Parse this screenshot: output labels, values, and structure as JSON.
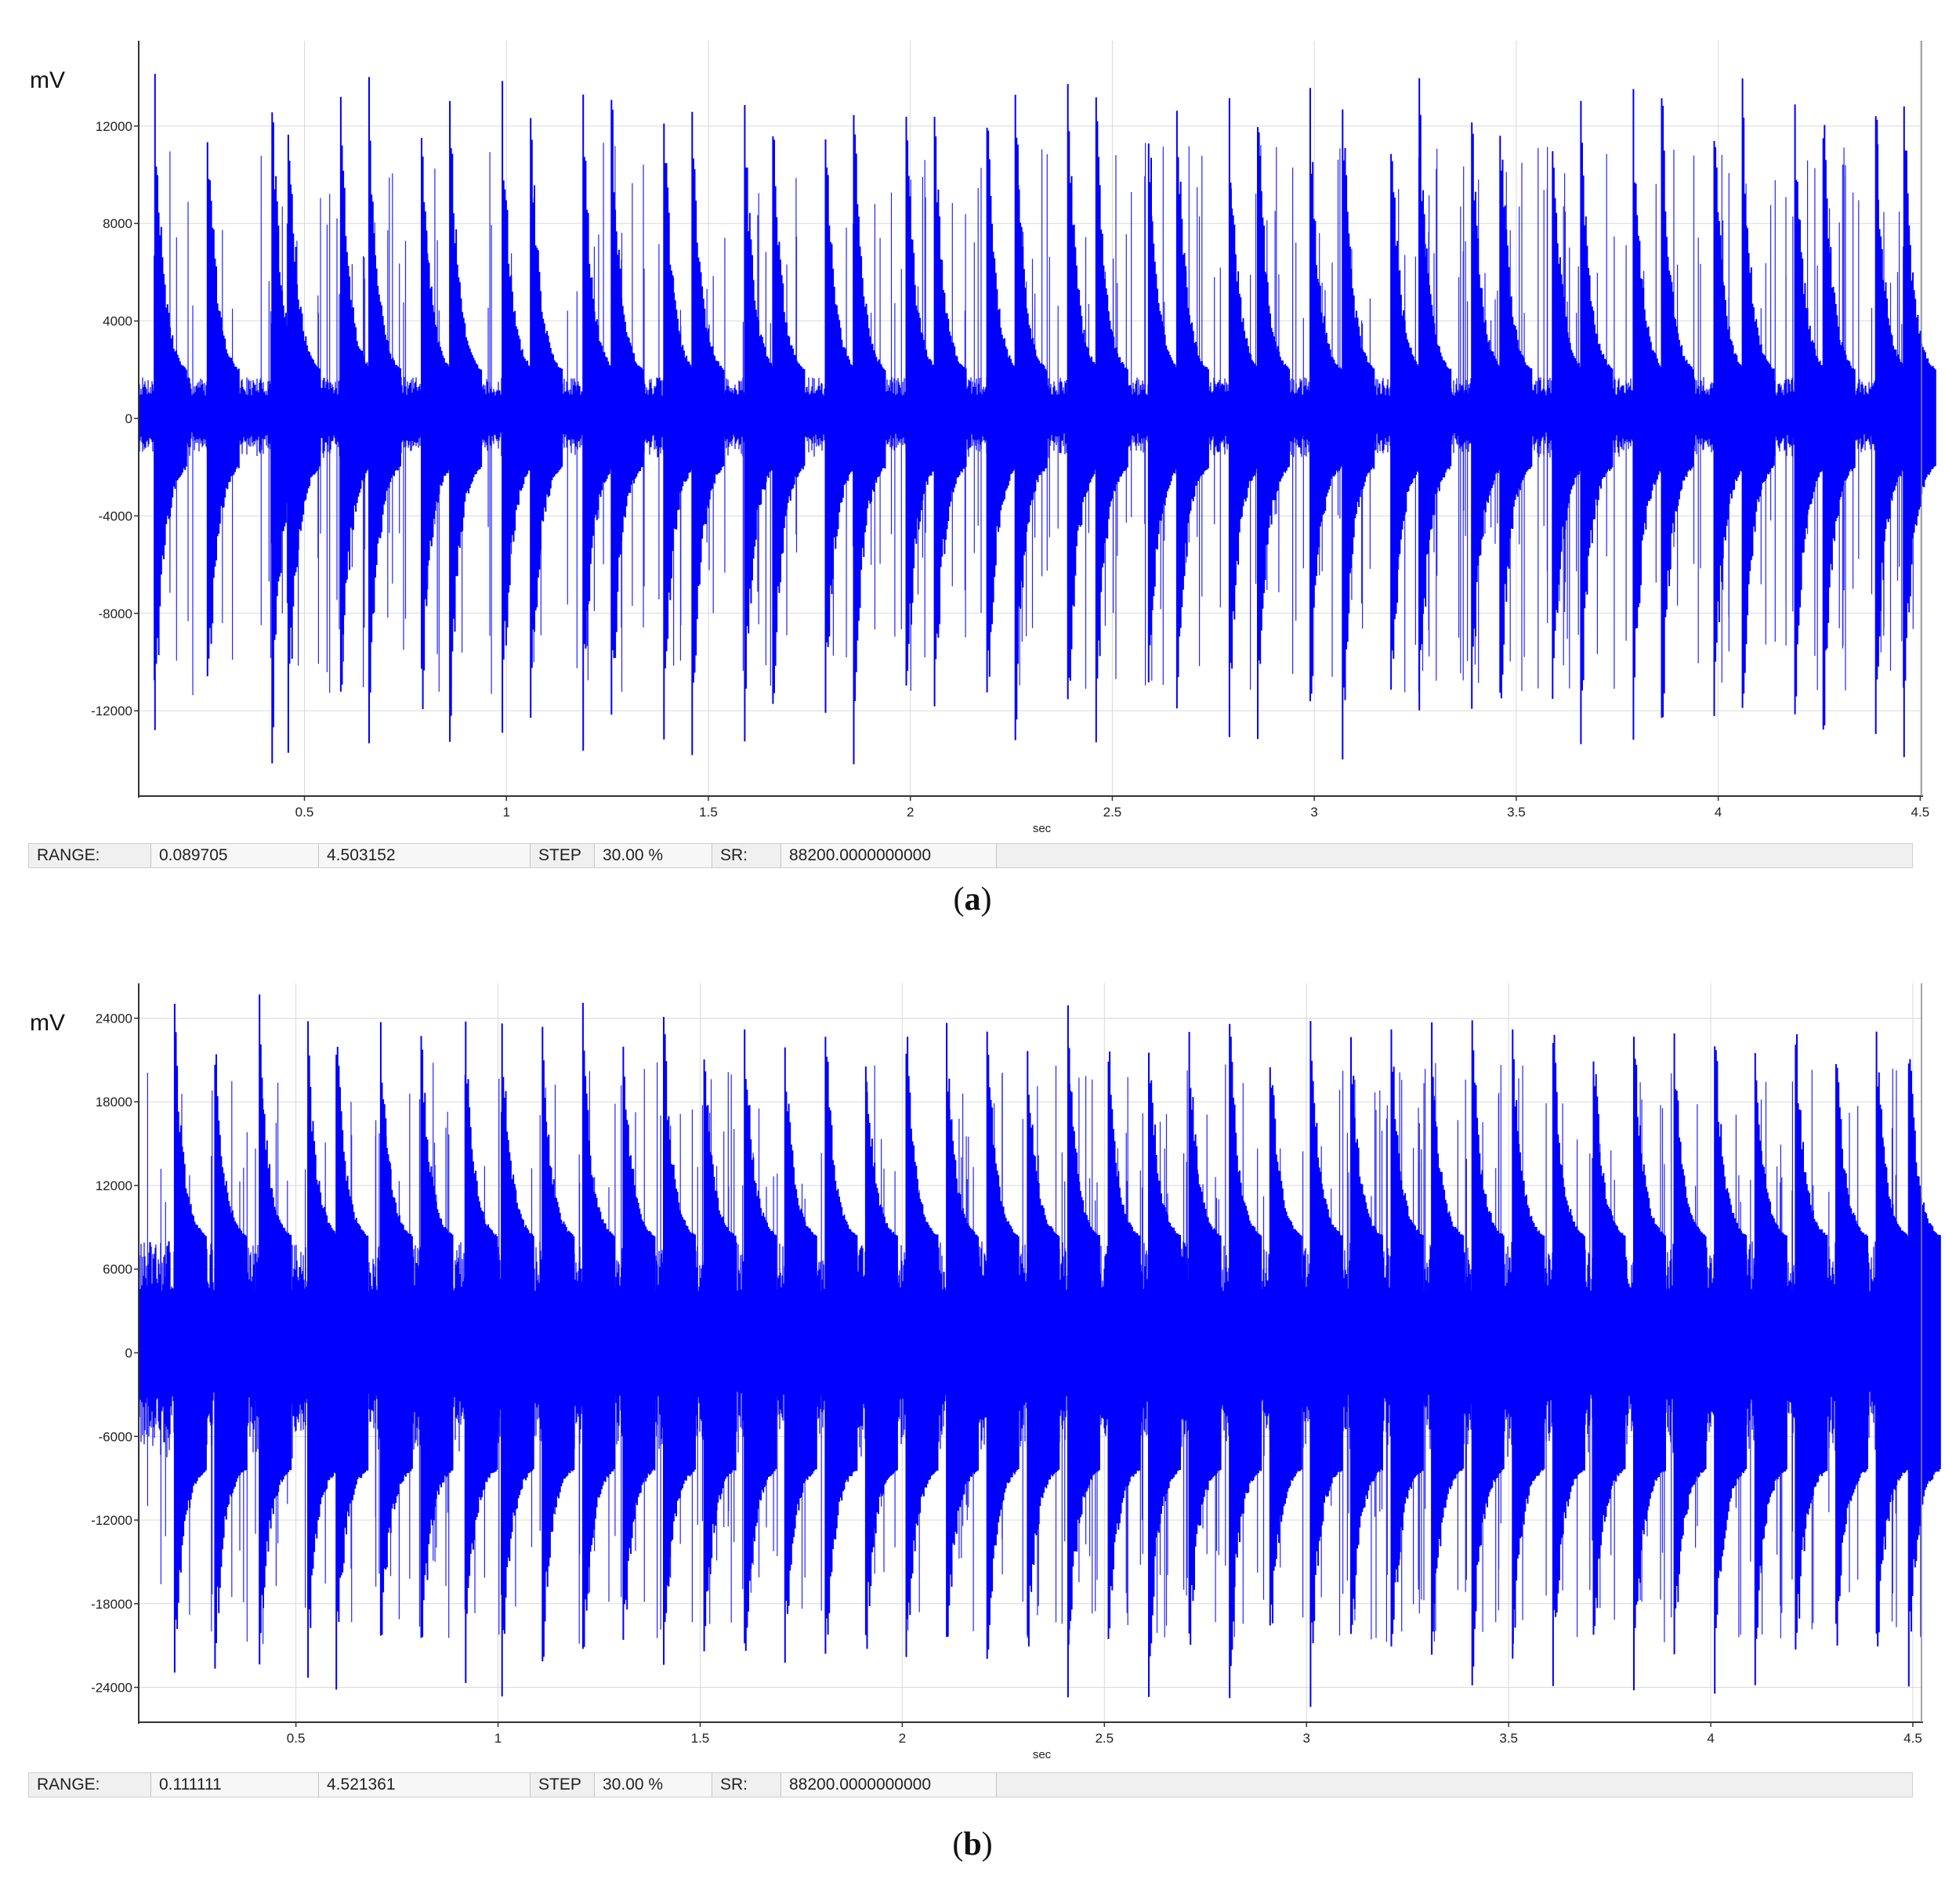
{
  "chart_data": [
    {
      "type": "line",
      "panel": "a",
      "caption": "a",
      "ylabel": "mV",
      "xlabel": "sec",
      "xlim": [
        0.089705,
        4.503152
      ],
      "ylim": [
        -15500,
        15500
      ],
      "xticks": [
        0.5,
        1,
        1.5,
        2,
        2.5,
        3,
        3.5,
        4,
        4.5
      ],
      "xtick_labels": [
        "0.5",
        "1",
        "1.5",
        "2",
        "2.5",
        "3",
        "3.5",
        "4",
        "4.5"
      ],
      "yticks": [
        12000,
        8000,
        4000,
        0,
        -4000,
        -8000,
        -12000
      ],
      "ytick_labels": [
        "12000",
        "8000",
        "4000",
        "0",
        "-4000",
        "-8000",
        "-12000"
      ],
      "grid": true,
      "series_color": "#0000ff",
      "baseline_amplitude": 1700,
      "peaks": [
        {
          "x": 0.13,
          "y": 14800
        },
        {
          "x": 0.26,
          "y": 14200
        },
        {
          "x": 0.42,
          "y": 14500
        },
        {
          "x": 0.46,
          "y": 14300
        },
        {
          "x": 0.59,
          "y": 14100
        },
        {
          "x": 0.66,
          "y": 14400
        },
        {
          "x": 0.79,
          "y": 13600
        },
        {
          "x": 0.86,
          "y": 14200
        },
        {
          "x": 0.99,
          "y": 13900
        },
        {
          "x": 1.06,
          "y": 14300
        },
        {
          "x": 1.19,
          "y": 13800
        },
        {
          "x": 1.26,
          "y": 14400
        },
        {
          "x": 1.39,
          "y": 13700
        },
        {
          "x": 1.46,
          "y": 14500
        },
        {
          "x": 1.59,
          "y": 13900
        },
        {
          "x": 1.66,
          "y": 14100
        },
        {
          "x": 1.79,
          "y": 13600
        },
        {
          "x": 1.86,
          "y": 14600
        },
        {
          "x": 1.99,
          "y": 13900
        },
        {
          "x": 2.06,
          "y": 14200
        },
        {
          "x": 2.19,
          "y": 13800
        },
        {
          "x": 2.26,
          "y": 14400
        },
        {
          "x": 2.39,
          "y": 14700
        },
        {
          "x": 2.46,
          "y": 14300
        },
        {
          "x": 2.59,
          "y": 13900
        },
        {
          "x": 2.66,
          "y": 14200
        },
        {
          "x": 2.79,
          "y": 13800
        },
        {
          "x": 2.86,
          "y": 14600
        },
        {
          "x": 2.99,
          "y": 13900
        },
        {
          "x": 3.07,
          "y": 15200
        },
        {
          "x": 3.19,
          "y": 13800
        },
        {
          "x": 3.26,
          "y": 14400
        },
        {
          "x": 3.39,
          "y": 13700
        },
        {
          "x": 3.46,
          "y": 14500
        },
        {
          "x": 3.59,
          "y": 14000
        },
        {
          "x": 3.66,
          "y": 14300
        },
        {
          "x": 3.79,
          "y": 13900
        },
        {
          "x": 3.86,
          "y": 14600
        },
        {
          "x": 3.99,
          "y": 13800
        },
        {
          "x": 4.06,
          "y": 14200
        },
        {
          "x": 4.19,
          "y": 13900
        },
        {
          "x": 4.26,
          "y": 14500
        },
        {
          "x": 4.39,
          "y": 14000
        },
        {
          "x": 4.46,
          "y": 14100
        }
      ]
    },
    {
      "type": "line",
      "panel": "b",
      "caption": "b",
      "ylabel": "mV",
      "xlabel": "sec",
      "xlim": [
        0.111111,
        4.521361
      ],
      "ylim": [
        -26500,
        26500
      ],
      "xticks": [
        0.5,
        1,
        1.5,
        2,
        2.5,
        3,
        3.5,
        4,
        4.5
      ],
      "xtick_labels": [
        "0.5",
        "1",
        "1.5",
        "2",
        "2.5",
        "3",
        "3.5",
        "4",
        "4.5"
      ],
      "yticks": [
        24000,
        18000,
        12000,
        6000,
        0,
        -6000,
        -12000,
        -18000,
        -24000
      ],
      "ytick_labels": [
        "24000",
        "18000",
        "12000",
        "6000",
        "0",
        "-6000",
        "-12000",
        "-18000",
        "-24000"
      ],
      "grid": true,
      "series_color": "#0000ff",
      "baseline_amplitude": 8000,
      "peaks": [
        {
          "x": 0.2,
          "y": 25500
        },
        {
          "x": 0.3,
          "y": 24500
        },
        {
          "x": 0.41,
          "y": 25800
        },
        {
          "x": 0.53,
          "y": 24000
        },
        {
          "x": 0.6,
          "y": 25000
        },
        {
          "x": 0.71,
          "y": 24200
        },
        {
          "x": 0.81,
          "y": 25300
        },
        {
          "x": 0.92,
          "y": 24000
        },
        {
          "x": 1.01,
          "y": 25700
        },
        {
          "x": 1.11,
          "y": 24100
        },
        {
          "x": 1.21,
          "y": 25100
        },
        {
          "x": 1.31,
          "y": 24300
        },
        {
          "x": 1.41,
          "y": 25400
        },
        {
          "x": 1.51,
          "y": 24200
        },
        {
          "x": 1.61,
          "y": 25600
        },
        {
          "x": 1.71,
          "y": 24100
        },
        {
          "x": 1.81,
          "y": 25300
        },
        {
          "x": 1.91,
          "y": 24000
        },
        {
          "x": 2.01,
          "y": 25500
        },
        {
          "x": 2.11,
          "y": 24300
        },
        {
          "x": 2.21,
          "y": 25200
        },
        {
          "x": 2.31,
          "y": 24100
        },
        {
          "x": 2.41,
          "y": 25600
        },
        {
          "x": 2.51,
          "y": 24000
        },
        {
          "x": 2.61,
          "y": 25400
        },
        {
          "x": 2.71,
          "y": 24300
        },
        {
          "x": 2.81,
          "y": 25900
        },
        {
          "x": 2.91,
          "y": 24100
        },
        {
          "x": 3.01,
          "y": 25600
        },
        {
          "x": 3.11,
          "y": 24200
        },
        {
          "x": 3.21,
          "y": 25300
        },
        {
          "x": 3.31,
          "y": 24000
        },
        {
          "x": 3.41,
          "y": 25400
        },
        {
          "x": 3.51,
          "y": 24200
        },
        {
          "x": 3.61,
          "y": 25100
        },
        {
          "x": 3.71,
          "y": 24300
        },
        {
          "x": 3.81,
          "y": 25500
        },
        {
          "x": 3.91,
          "y": 24100
        },
        {
          "x": 4.01,
          "y": 25300
        },
        {
          "x": 4.11,
          "y": 24200
        },
        {
          "x": 4.21,
          "y": 25200
        },
        {
          "x": 4.31,
          "y": 24000
        },
        {
          "x": 4.41,
          "y": 25000
        },
        {
          "x": 4.49,
          "y": 24500
        }
      ]
    }
  ],
  "panels": [
    {
      "status": {
        "range_label": "RANGE:",
        "range_start": "0.089705",
        "range_end": "4.503152",
        "step_label": "STEP",
        "step_value": "30.00 %",
        "sr_label": "SR:",
        "sr_value": "88200.0000000000"
      },
      "caption": "a"
    },
    {
      "status": {
        "range_label": "RANGE:",
        "range_start": "0.111111",
        "range_end": "4.521361",
        "step_label": "STEP",
        "step_value": "30.00 %",
        "sr_label": "SR:",
        "sr_value": "88200.0000000000"
      },
      "caption": "b"
    }
  ]
}
